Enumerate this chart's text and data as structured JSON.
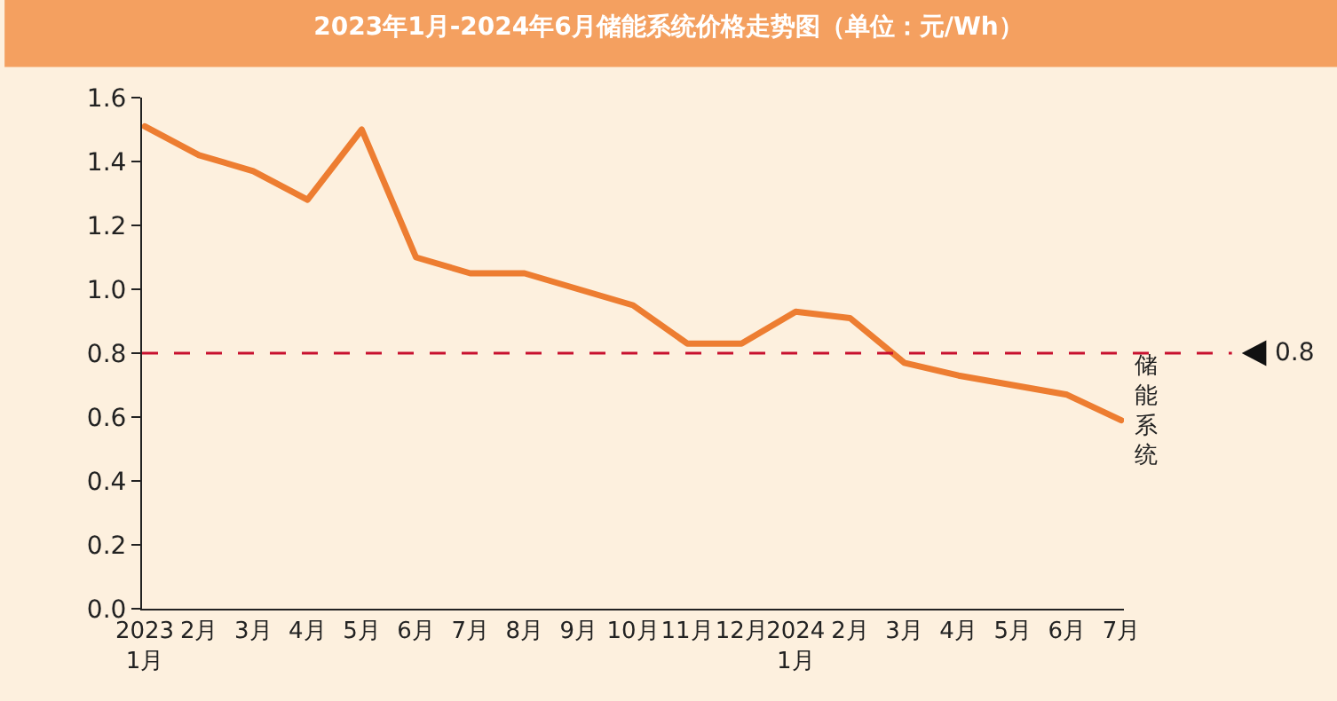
{
  "chart_data": {
    "type": "line",
    "title": "2023年1月-2024年6月储能系统价格走势图（单位：元/Wh）",
    "categories": [
      "2023\n1月",
      "2月",
      "3月",
      "4月",
      "5月",
      "6月",
      "7月",
      "8月",
      "9月",
      "10月",
      "11月",
      "12月",
      "2024\n1月",
      "2月",
      "3月",
      "4月",
      "5月",
      "6月",
      "7月"
    ],
    "series": [
      {
        "name": "储能系统",
        "color": "#ed7d31",
        "values": [
          1.51,
          1.42,
          1.37,
          1.28,
          1.5,
          1.1,
          1.05,
          1.05,
          1.0,
          0.95,
          0.83,
          0.83,
          0.93,
          0.91,
          0.77,
          0.73,
          0.7,
          0.67,
          0.59
        ]
      }
    ],
    "ylim": [
      0,
      1.6
    ],
    "yticks": [
      {
        "value": 0,
        "label": "0.0"
      },
      {
        "value": 0.2,
        "label": "0.2"
      },
      {
        "value": 0.4,
        "label": "0.4"
      },
      {
        "value": 0.6,
        "label": "0.6"
      },
      {
        "value": 0.8,
        "label": "0.8"
      },
      {
        "value": 1.0,
        "label": "1.0"
      },
      {
        "value": 1.2,
        "label": "1.2"
      },
      {
        "value": 1.4,
        "label": "1.4"
      },
      {
        "value": 1.6,
        "label": "1.6"
      }
    ],
    "ref_lines": [
      {
        "axis": "y",
        "value": 0.8,
        "label": "0.8",
        "color": "#c8102e",
        "line_style": "dashed"
      }
    ],
    "grid": false,
    "legend": false,
    "marker": "none",
    "line_style": "solid"
  }
}
